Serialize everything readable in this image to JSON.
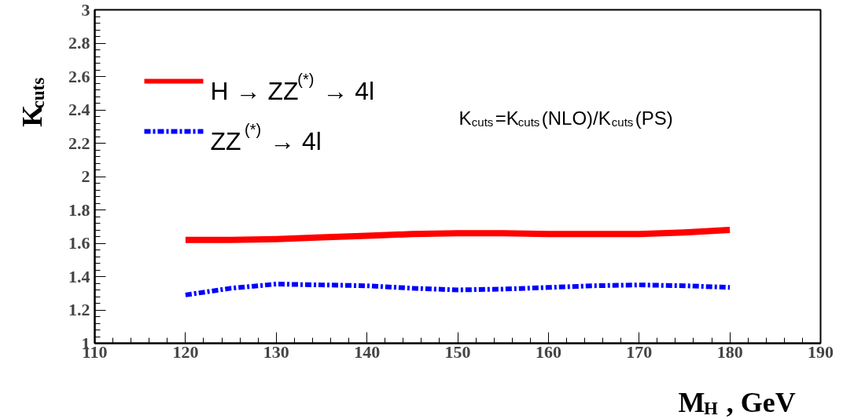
{
  "chart_data": {
    "type": "line",
    "xlabel": "M$_{H}$ , GeV",
    "ylabel": "K$_{cuts}$",
    "xlim": [
      110,
      190
    ],
    "xticks": [
      110,
      120,
      130,
      140,
      150,
      160,
      170,
      180,
      190
    ],
    "ylim": [
      1,
      3
    ],
    "yticks": [
      1,
      1.2,
      1.4,
      1.6,
      1.8,
      2,
      2.2,
      2.4,
      2.6,
      2.8,
      3
    ],
    "grid": false,
    "legend": "top left",
    "annotations": [
      "K$_{cuts}$=K$_{cuts}$(NLO)/K$_{cuts}$(PS)"
    ],
    "series": [
      {
        "name": "H → ZZ$^{(*)}$ → 4l",
        "color": "#ff0000",
        "line_style": "solid",
        "x": [
          120,
          125,
          130,
          135,
          140,
          145,
          150,
          155,
          160,
          165,
          170,
          175,
          180
        ],
        "values": [
          1.62,
          1.62,
          1.625,
          1.635,
          1.645,
          1.655,
          1.66,
          1.66,
          1.655,
          1.655,
          1.655,
          1.665,
          1.68
        ]
      },
      {
        "name": "ZZ$^{(*)}$ → 4l",
        "color": "#0000ff",
        "line_style": "dashdot",
        "x": [
          120,
          125,
          130,
          135,
          140,
          145,
          150,
          155,
          160,
          165,
          170,
          175,
          180
        ],
        "values": [
          1.29,
          1.33,
          1.355,
          1.35,
          1.345,
          1.33,
          1.32,
          1.325,
          1.335,
          1.345,
          1.35,
          1.345,
          1.335
        ]
      }
    ]
  }
}
